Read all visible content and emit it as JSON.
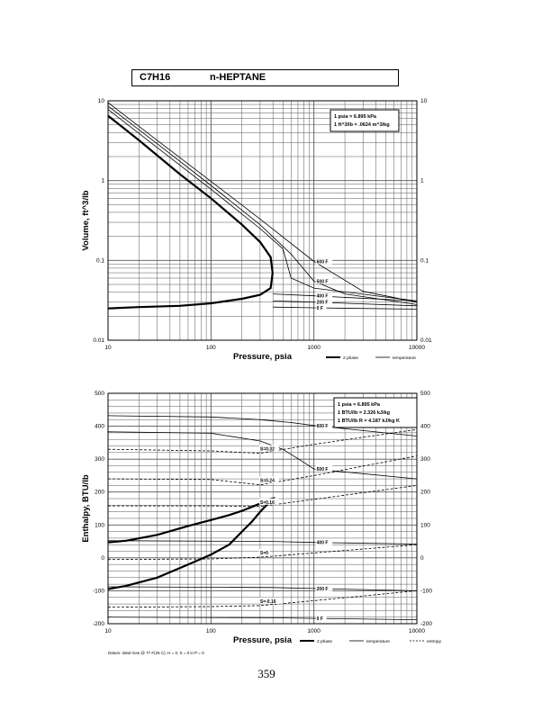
{
  "header": {
    "formula": "C7H16",
    "name": "n-HEPTANE"
  },
  "page_number": "359",
  "footnote": "Datum: Ideal Gas @ 77 F(25 C), H = 0, S = 0 in P = 0",
  "colors": {
    "ink": "#000000",
    "grid": "#555555",
    "paper": "#ffffff"
  },
  "chart_data": [
    {
      "type": "line",
      "scale": "log-log",
      "title": "",
      "xlabel": "Pressure,  psia",
      "ylabel": "Volume, ft^3/lb",
      "xlim": [
        10,
        10000
      ],
      "ylim": [
        0.01,
        10
      ],
      "x_ticks": [
        "10",
        "100",
        "1000",
        "10000"
      ],
      "y_ticks": [
        "0.01",
        "0.1",
        "1",
        "10"
      ],
      "grid": true,
      "conversion_box": [
        "1 psia  =  6.895 kPa",
        "1 ft^3/lb  =  .0624 m^3/kg"
      ],
      "legend": [
        {
          "name": "2 phase",
          "style": "bold"
        },
        {
          "name": "temperature",
          "style": "solid"
        }
      ],
      "legend_position": "bottom-right",
      "series": [
        {
          "name": "2 phase",
          "style": "bold",
          "label": "",
          "x": [
            10,
            20,
            50,
            100,
            200,
            300,
            380,
            397,
            380,
            300,
            200,
            100,
            50,
            20,
            10
          ],
          "y": [
            6.5,
            3.2,
            1.2,
            0.6,
            0.28,
            0.17,
            0.11,
            0.07,
            0.045,
            0.037,
            0.033,
            0.029,
            0.027,
            0.026,
            0.025
          ]
        },
        {
          "name": "temperature",
          "style": "solid",
          "label": "600 F",
          "x": [
            10,
            30,
            100,
            300,
            1000,
            3000,
            10000
          ],
          "y": [
            9.5,
            3.2,
            0.98,
            0.33,
            0.097,
            0.041,
            0.03
          ]
        },
        {
          "name": "temperature",
          "style": "solid",
          "label": "500 F",
          "x": [
            10,
            30,
            100,
            300,
            600,
            1000,
            2000,
            10000
          ],
          "y": [
            8.6,
            2.9,
            0.87,
            0.28,
            0.12,
            0.055,
            0.038,
            0.028
          ]
        },
        {
          "name": "temperature",
          "style": "solid",
          "label": "",
          "x": [
            10,
            30,
            100,
            300,
            500,
            600,
            1000,
            10000
          ],
          "y": [
            7.8,
            2.6,
            0.78,
            0.25,
            0.14,
            0.06,
            0.045,
            0.031
          ]
        },
        {
          "name": "temperature",
          "style": "solid",
          "label": "400 F",
          "x": [
            400,
            1000,
            10000
          ],
          "y": [
            0.038,
            0.036,
            0.031
          ]
        },
        {
          "name": "temperature",
          "style": "solid",
          "label": "200 F",
          "x": [
            400,
            1000,
            10000
          ],
          "y": [
            0.031,
            0.03,
            0.027
          ]
        },
        {
          "name": "temperature",
          "style": "solid",
          "label": "0 F",
          "x": [
            400,
            1000,
            10000
          ],
          "y": [
            0.026,
            0.0255,
            0.0245
          ]
        }
      ]
    },
    {
      "type": "line",
      "scale": "semilog-x",
      "title": "",
      "xlabel": "Pressure,  psia",
      "ylabel": "Enthalpy, BTU/lb",
      "xlim": [
        10,
        10000
      ],
      "ylim": [
        -200,
        500
      ],
      "x_ticks": [
        "10",
        "100",
        "1000",
        "10000"
      ],
      "y_ticks": [
        "-200",
        "-100",
        "0",
        "100",
        "200",
        "300",
        "400",
        "500"
      ],
      "grid": true,
      "conversion_box": [
        "1 psia  =  6.895 kPa",
        "1 BTU/lb  =  2.326 kJ/kg",
        "1 BTU/lb R  =  4.187 kJ/kg K"
      ],
      "legend": [
        {
          "name": "2 phase",
          "style": "bold"
        },
        {
          "name": "temperature",
          "style": "solid"
        },
        {
          "name": "entropy",
          "style": "dashed"
        }
      ],
      "legend_position": "bottom-right",
      "series": [
        {
          "name": "2 phase",
          "style": "bold",
          "label": "",
          "x": [
            10,
            15,
            30,
            60,
            100,
            150,
            200,
            250,
            300,
            370,
            397,
            370,
            300,
            250,
            200,
            150,
            100,
            60,
            30,
            15,
            10
          ],
          "y": [
            47,
            52,
            70,
            97,
            115,
            130,
            143,
            155,
            165,
            178,
            180,
            170,
            140,
            110,
            80,
            40,
            10,
            -20,
            -60,
            -85,
            -95
          ]
        },
        {
          "name": "temperature",
          "style": "solid",
          "label": "600 F",
          "x": [
            10,
            100,
            300,
            600,
            1000,
            10000
          ],
          "y": [
            432,
            428,
            420,
            411,
            402,
            370
          ]
        },
        {
          "name": "temperature",
          "style": "solid",
          "label": "500 F",
          "x": [
            10,
            100,
            300,
            500,
            800,
            1000,
            10000
          ],
          "y": [
            383,
            379,
            355,
            330,
            290,
            270,
            240
          ]
        },
        {
          "name": "temperature",
          "style": "solid",
          "label": "400 F",
          "x": [
            10,
            400,
            1000,
            10000
          ],
          "y": [
            52,
            50,
            47,
            42
          ]
        },
        {
          "name": "temperature",
          "style": "solid",
          "label": "200 F",
          "x": [
            10,
            400,
            1000,
            10000
          ],
          "y": [
            -88,
            -90,
            -93,
            -100
          ]
        },
        {
          "name": "temperature",
          "style": "solid",
          "label": "0 F",
          "x": [
            10,
            400,
            1000,
            10000
          ],
          "y": [
            -180,
            -182,
            -184,
            -188
          ]
        },
        {
          "name": "entropy",
          "style": "dashed",
          "label": "S=0.32",
          "x": [
            10,
            100,
            300,
            1000,
            10000
          ],
          "y": [
            330,
            325,
            318,
            345,
            390
          ]
        },
        {
          "name": "entropy",
          "style": "dashed",
          "label": "S=0.24",
          "x": [
            10,
            100,
            300,
            1000,
            10000
          ],
          "y": [
            240,
            238,
            222,
            250,
            310
          ]
        },
        {
          "name": "entropy",
          "style": "dashed",
          "label": "S=0.16",
          "x": [
            10,
            100,
            300,
            1000,
            10000
          ],
          "y": [
            158,
            158,
            156,
            178,
            220
          ]
        },
        {
          "name": "entropy",
          "style": "dashed",
          "label": "S=0",
          "x": [
            10,
            100,
            300,
            1000,
            10000
          ],
          "y": [
            -5,
            -3,
            2,
            15,
            40
          ]
        },
        {
          "name": "entropy",
          "style": "dashed",
          "label": "S=-0.16",
          "x": [
            10,
            100,
            300,
            1000,
            10000
          ],
          "y": [
            -150,
            -148,
            -145,
            -130,
            -100
          ]
        }
      ]
    }
  ]
}
